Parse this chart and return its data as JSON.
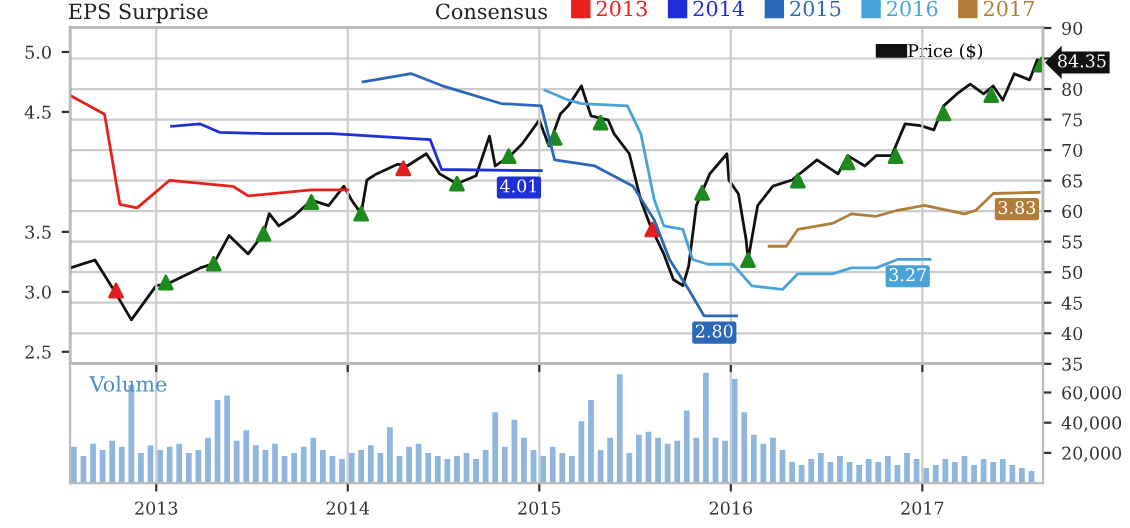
{
  "chart_data": [
    {
      "type": "line",
      "annotations": [
        "EPS Surprise"
      ],
      "legend_title": "Consensus",
      "legend": "top",
      "grid": true,
      "tick_labels": "y",
      "xlim": [
        2012.55,
        2017.63
      ],
      "xticks": [
        2013,
        2014,
        2015,
        2016,
        2017
      ],
      "ylim": [
        2.4,
        5.2
      ],
      "yticks": [
        2.5,
        {
          "value": 3.0,
          "label": "3.0"
        },
        3.5,
        4.5,
        {
          "value": 5.0,
          "label": "5.0"
        }
      ],
      "y2lim": [
        35,
        90
      ],
      "y2ticks": [
        35,
        40,
        45,
        50,
        55,
        60,
        65,
        70,
        75,
        80,
        {
          "value": 85,
          "label": null
        },
        90
      ],
      "series": [
        {
          "name": "2013",
          "color": "#e8211d",
          "x": [
            2012.56,
            2012.73,
            2012.81,
            2012.9,
            2013.07,
            2013.4,
            2013.48,
            2013.81,
            2014.0
          ],
          "values": [
            4.63,
            4.48,
            3.73,
            3.7,
            3.93,
            3.88,
            3.8,
            3.85,
            3.85
          ]
        },
        {
          "name": "2014",
          "color": "#1f2fd6",
          "x": [
            2013.08,
            2013.23,
            2013.33,
            2013.57,
            2013.92,
            2014.43,
            2014.49,
            2015.01
          ],
          "values": [
            4.38,
            4.4,
            4.33,
            4.32,
            4.32,
            4.27,
            4.02,
            4.01
          ],
          "value_labels": [
            null,
            null,
            null,
            null,
            null,
            null,
            null,
            "4.01"
          ]
        },
        {
          "name": "2015",
          "color": "#2c68b8",
          "x": [
            2014.08,
            2014.33,
            2014.49,
            2014.8,
            2015.01,
            2015.08,
            2015.29,
            2015.49,
            2015.6,
            2015.68,
            2015.78,
            2015.86,
            2016.03
          ],
          "values": [
            4.75,
            4.82,
            4.72,
            4.57,
            4.55,
            4.1,
            4.05,
            3.88,
            3.6,
            3.27,
            3.02,
            2.8,
            2.8
          ],
          "value_labels": [
            null,
            null,
            null,
            null,
            null,
            null,
            null,
            null,
            null,
            null,
            null,
            null,
            "2.80"
          ]
        },
        {
          "name": "2016",
          "color": "#4aa3d8",
          "x": [
            2015.03,
            2015.15,
            2015.22,
            2015.46,
            2015.53,
            2015.6,
            2015.65,
            2015.75,
            2015.8,
            2015.88,
            2016.01,
            2016.11,
            2016.27,
            2016.35,
            2016.53,
            2016.63,
            2016.76,
            2016.87,
            2017.04
          ],
          "values": [
            4.68,
            4.6,
            4.57,
            4.55,
            4.32,
            3.77,
            3.55,
            3.52,
            3.27,
            3.23,
            3.23,
            3.05,
            3.02,
            3.15,
            3.15,
            3.2,
            3.2,
            3.27,
            3.27
          ],
          "value_labels": [
            null,
            null,
            null,
            null,
            null,
            null,
            null,
            null,
            null,
            null,
            null,
            null,
            null,
            null,
            null,
            null,
            null,
            null,
            "3.27"
          ]
        },
        {
          "name": "2017",
          "color": "#b07d3a",
          "x": [
            2016.2,
            2016.29,
            2016.35,
            2016.53,
            2016.63,
            2016.76,
            2016.87,
            2017.01,
            2017.22,
            2017.28,
            2017.37,
            2017.61
          ],
          "values": [
            3.38,
            3.38,
            3.52,
            3.57,
            3.65,
            3.63,
            3.68,
            3.72,
            3.65,
            3.68,
            3.82,
            3.83
          ],
          "value_labels": [
            null,
            null,
            null,
            null,
            null,
            null,
            null,
            null,
            null,
            null,
            null,
            "3.83"
          ]
        },
        {
          "name": "Price ($)",
          "color": "#111111",
          "axis": "y2",
          "x": [
            2012.55,
            2012.68,
            2012.79,
            2012.87,
            2013.0,
            2013.06,
            2013.23,
            2013.3,
            2013.38,
            2013.48,
            2013.56,
            2013.59,
            2013.64,
            2013.72,
            2013.81,
            2013.9,
            2013.98,
            2014.02,
            2014.07,
            2014.1,
            2014.15,
            2014.26,
            2014.31,
            2014.41,
            2014.48,
            2014.57,
            2014.67,
            2014.74,
            2014.77,
            2014.85,
            2014.91,
            2015.0,
            2015.05,
            2015.11,
            2015.15,
            2015.22,
            2015.27,
            2015.36,
            2015.39,
            2015.47,
            2015.53,
            2015.58,
            2015.65,
            2015.7,
            2015.75,
            2015.78,
            2015.82,
            2015.89,
            2015.98,
            2015.99,
            2016.04,
            2016.08,
            2016.09,
            2016.14,
            2016.22,
            2016.32,
            2016.45,
            2016.56,
            2016.61,
            2016.7,
            2016.76,
            2016.84,
            2016.91,
            2016.99,
            2017.06,
            2017.11,
            2017.18,
            2017.25,
            2017.32,
            2017.37,
            2017.42,
            2017.48,
            2017.56,
            2017.6,
            2017.62
          ],
          "values": [
            50.7,
            52.0,
            46.5,
            42.2,
            47.8,
            48.1,
            50.7,
            51.4,
            56.0,
            53.0,
            56.3,
            59.6,
            57.6,
            59.2,
            61.8,
            60.9,
            64.1,
            61.8,
            59.6,
            65.1,
            66.1,
            67.7,
            67.4,
            69.4,
            66.1,
            64.5,
            65.8,
            72.3,
            67.4,
            69.1,
            71.0,
            74.9,
            70.7,
            75.9,
            77.2,
            80.5,
            75.6,
            74.9,
            72.7,
            69.4,
            61.8,
            57.6,
            53.0,
            48.8,
            47.8,
            51.0,
            60.9,
            66.1,
            69.4,
            65.1,
            62.8,
            55.3,
            52.0,
            60.9,
            64.1,
            65.1,
            68.4,
            66.1,
            69.1,
            67.4,
            69.1,
            69.1,
            74.3,
            74.0,
            73.3,
            77.2,
            79.2,
            80.8,
            79.2,
            80.5,
            78.2,
            82.5,
            81.5,
            84.8,
            84.35
          ],
          "value_labels": [
            null,
            null,
            null,
            null,
            null,
            null,
            null,
            null,
            null,
            null,
            null,
            null,
            null,
            null,
            null,
            null,
            null,
            null,
            null,
            null,
            null,
            null,
            null,
            null,
            null,
            null,
            null,
            null,
            null,
            null,
            null,
            null,
            null,
            null,
            null,
            null,
            null,
            null,
            null,
            null,
            null,
            null,
            null,
            null,
            null,
            null,
            null,
            null,
            null,
            null,
            null,
            null,
            null,
            null,
            null,
            null,
            null,
            null,
            null,
            null,
            null,
            null,
            null,
            null,
            null,
            null,
            null,
            null,
            null,
            null,
            null,
            null,
            null,
            null,
            "84.35"
          ]
        },
        {
          "type": "scatter",
          "marker": "triangle",
          "axis": "y2",
          "color": "#1e8a1e",
          "x": [
            2013.05,
            2013.3,
            2013.56,
            2013.81,
            2014.07,
            2014.57,
            2014.84,
            2015.08,
            2015.32,
            2015.85,
            2016.09,
            2016.35,
            2016.61,
            2016.86,
            2017.11,
            2017.36,
            2017.62
          ],
          "values": [
            48.3,
            51.4,
            56.3,
            61.5,
            59.6,
            64.5,
            69,
            72,
            74.5,
            63,
            52,
            65,
            68,
            69,
            76,
            79,
            84
          ]
        },
        {
          "type": "scatter",
          "marker": "triangle",
          "axis": "y2",
          "color": "#e02020",
          "x": [
            2012.79,
            2014.29,
            2015.59
          ],
          "values": [
            47,
            67,
            57
          ]
        }
      ]
    },
    {
      "type": "bar",
      "annotations": [
        "Volume"
      ],
      "color": "#8fb6de",
      "grid": "x",
      "xlim": [
        2012.55,
        2017.63
      ],
      "xticks": [
        2013,
        2014,
        2015,
        2016,
        2017
      ],
      "ylim": [
        0,
        79000
      ],
      "yticks": [
        {
          "value": 20000,
          "label": "20,000"
        },
        {
          "value": 40000,
          "label": "40,000"
        },
        {
          "value": 60000,
          "label": "60,000"
        }
      ],
      "x": [
        2012.57,
        2012.62,
        2012.67,
        2012.72,
        2012.77,
        2012.82,
        2012.87,
        2012.92,
        2012.97,
        2013.02,
        2013.07,
        2013.12,
        2013.17,
        2013.22,
        2013.27,
        2013.32,
        2013.37,
        2013.42,
        2013.47,
        2013.52,
        2013.57,
        2013.62,
        2013.67,
        2013.72,
        2013.77,
        2013.82,
        2013.87,
        2013.92,
        2013.97,
        2014.02,
        2014.07,
        2014.12,
        2014.17,
        2014.22,
        2014.27,
        2014.32,
        2014.37,
        2014.42,
        2014.47,
        2014.52,
        2014.57,
        2014.62,
        2014.67,
        2014.72,
        2014.77,
        2014.82,
        2014.87,
        2014.92,
        2014.97,
        2015.02,
        2015.07,
        2015.12,
        2015.17,
        2015.22,
        2015.27,
        2015.32,
        2015.37,
        2015.42,
        2015.47,
        2015.52,
        2015.57,
        2015.62,
        2015.67,
        2015.72,
        2015.77,
        2015.82,
        2015.87,
        2015.92,
        2015.97,
        2016.02,
        2016.07,
        2016.12,
        2016.17,
        2016.22,
        2016.27,
        2016.32,
        2016.37,
        2016.42,
        2016.47,
        2016.52,
        2016.57,
        2016.62,
        2016.67,
        2016.72,
        2016.77,
        2016.82,
        2016.87,
        2016.92,
        2016.97,
        2017.02,
        2017.07,
        2017.12,
        2017.17,
        2017.22,
        2017.27,
        2017.32,
        2017.37,
        2017.42,
        2017.47,
        2017.52,
        2017.57
      ],
      "values": [
        24000,
        18000,
        26000,
        22000,
        28000,
        24000,
        65000,
        20000,
        25000,
        22000,
        24000,
        26000,
        20000,
        22000,
        30000,
        55000,
        58000,
        28000,
        35000,
        25000,
        22000,
        26000,
        18000,
        20000,
        24000,
        30000,
        22000,
        18000,
        16000,
        20000,
        22000,
        25000,
        20000,
        37000,
        18000,
        24000,
        26000,
        20000,
        18000,
        16000,
        18000,
        20000,
        16000,
        22000,
        47000,
        24000,
        42000,
        30000,
        22000,
        18000,
        24000,
        20000,
        18000,
        41000,
        55000,
        22000,
        30000,
        72000,
        20000,
        32000,
        34000,
        30000,
        26000,
        28000,
        48000,
        30000,
        73000,
        30000,
        28000,
        69000,
        47000,
        32000,
        26000,
        30000,
        22000,
        14000,
        12000,
        16000,
        20000,
        14000,
        18000,
        14000,
        12000,
        16000,
        14000,
        18000,
        12000,
        20000,
        16000,
        10000,
        12000,
        16000,
        14000,
        18000,
        12000,
        16000,
        14000,
        16000,
        12000,
        10000,
        8000
      ]
    }
  ]
}
